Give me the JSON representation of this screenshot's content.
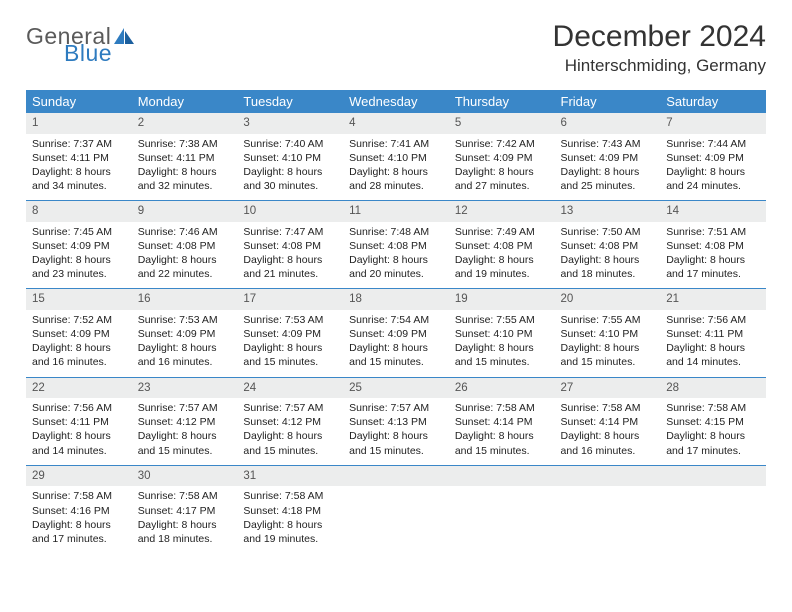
{
  "brand": {
    "general": "General",
    "blue": "Blue"
  },
  "title": "December 2024",
  "location": "Hinterschmiding, Germany",
  "colors": {
    "header_bg": "#3a87c8",
    "header_fg": "#ffffff",
    "daynum_bg": "#eceded",
    "row_divider": "#3a87c8",
    "logo_gray": "#5a5a5a",
    "logo_blue": "#2e7bbf"
  },
  "weekdays": [
    "Sunday",
    "Monday",
    "Tuesday",
    "Wednesday",
    "Thursday",
    "Friday",
    "Saturday"
  ],
  "weeks": [
    [
      {
        "n": "1",
        "sr": "Sunrise: 7:37 AM",
        "ss": "Sunset: 4:11 PM",
        "dl1": "Daylight: 8 hours",
        "dl2": "and 34 minutes."
      },
      {
        "n": "2",
        "sr": "Sunrise: 7:38 AM",
        "ss": "Sunset: 4:11 PM",
        "dl1": "Daylight: 8 hours",
        "dl2": "and 32 minutes."
      },
      {
        "n": "3",
        "sr": "Sunrise: 7:40 AM",
        "ss": "Sunset: 4:10 PM",
        "dl1": "Daylight: 8 hours",
        "dl2": "and 30 minutes."
      },
      {
        "n": "4",
        "sr": "Sunrise: 7:41 AM",
        "ss": "Sunset: 4:10 PM",
        "dl1": "Daylight: 8 hours",
        "dl2": "and 28 minutes."
      },
      {
        "n": "5",
        "sr": "Sunrise: 7:42 AM",
        "ss": "Sunset: 4:09 PM",
        "dl1": "Daylight: 8 hours",
        "dl2": "and 27 minutes."
      },
      {
        "n": "6",
        "sr": "Sunrise: 7:43 AM",
        "ss": "Sunset: 4:09 PM",
        "dl1": "Daylight: 8 hours",
        "dl2": "and 25 minutes."
      },
      {
        "n": "7",
        "sr": "Sunrise: 7:44 AM",
        "ss": "Sunset: 4:09 PM",
        "dl1": "Daylight: 8 hours",
        "dl2": "and 24 minutes."
      }
    ],
    [
      {
        "n": "8",
        "sr": "Sunrise: 7:45 AM",
        "ss": "Sunset: 4:09 PM",
        "dl1": "Daylight: 8 hours",
        "dl2": "and 23 minutes."
      },
      {
        "n": "9",
        "sr": "Sunrise: 7:46 AM",
        "ss": "Sunset: 4:08 PM",
        "dl1": "Daylight: 8 hours",
        "dl2": "and 22 minutes."
      },
      {
        "n": "10",
        "sr": "Sunrise: 7:47 AM",
        "ss": "Sunset: 4:08 PM",
        "dl1": "Daylight: 8 hours",
        "dl2": "and 21 minutes."
      },
      {
        "n": "11",
        "sr": "Sunrise: 7:48 AM",
        "ss": "Sunset: 4:08 PM",
        "dl1": "Daylight: 8 hours",
        "dl2": "and 20 minutes."
      },
      {
        "n": "12",
        "sr": "Sunrise: 7:49 AM",
        "ss": "Sunset: 4:08 PM",
        "dl1": "Daylight: 8 hours",
        "dl2": "and 19 minutes."
      },
      {
        "n": "13",
        "sr": "Sunrise: 7:50 AM",
        "ss": "Sunset: 4:08 PM",
        "dl1": "Daylight: 8 hours",
        "dl2": "and 18 minutes."
      },
      {
        "n": "14",
        "sr": "Sunrise: 7:51 AM",
        "ss": "Sunset: 4:08 PM",
        "dl1": "Daylight: 8 hours",
        "dl2": "and 17 minutes."
      }
    ],
    [
      {
        "n": "15",
        "sr": "Sunrise: 7:52 AM",
        "ss": "Sunset: 4:09 PM",
        "dl1": "Daylight: 8 hours",
        "dl2": "and 16 minutes."
      },
      {
        "n": "16",
        "sr": "Sunrise: 7:53 AM",
        "ss": "Sunset: 4:09 PM",
        "dl1": "Daylight: 8 hours",
        "dl2": "and 16 minutes."
      },
      {
        "n": "17",
        "sr": "Sunrise: 7:53 AM",
        "ss": "Sunset: 4:09 PM",
        "dl1": "Daylight: 8 hours",
        "dl2": "and 15 minutes."
      },
      {
        "n": "18",
        "sr": "Sunrise: 7:54 AM",
        "ss": "Sunset: 4:09 PM",
        "dl1": "Daylight: 8 hours",
        "dl2": "and 15 minutes."
      },
      {
        "n": "19",
        "sr": "Sunrise: 7:55 AM",
        "ss": "Sunset: 4:10 PM",
        "dl1": "Daylight: 8 hours",
        "dl2": "and 15 minutes."
      },
      {
        "n": "20",
        "sr": "Sunrise: 7:55 AM",
        "ss": "Sunset: 4:10 PM",
        "dl1": "Daylight: 8 hours",
        "dl2": "and 15 minutes."
      },
      {
        "n": "21",
        "sr": "Sunrise: 7:56 AM",
        "ss": "Sunset: 4:11 PM",
        "dl1": "Daylight: 8 hours",
        "dl2": "and 14 minutes."
      }
    ],
    [
      {
        "n": "22",
        "sr": "Sunrise: 7:56 AM",
        "ss": "Sunset: 4:11 PM",
        "dl1": "Daylight: 8 hours",
        "dl2": "and 14 minutes."
      },
      {
        "n": "23",
        "sr": "Sunrise: 7:57 AM",
        "ss": "Sunset: 4:12 PM",
        "dl1": "Daylight: 8 hours",
        "dl2": "and 15 minutes."
      },
      {
        "n": "24",
        "sr": "Sunrise: 7:57 AM",
        "ss": "Sunset: 4:12 PM",
        "dl1": "Daylight: 8 hours",
        "dl2": "and 15 minutes."
      },
      {
        "n": "25",
        "sr": "Sunrise: 7:57 AM",
        "ss": "Sunset: 4:13 PM",
        "dl1": "Daylight: 8 hours",
        "dl2": "and 15 minutes."
      },
      {
        "n": "26",
        "sr": "Sunrise: 7:58 AM",
        "ss": "Sunset: 4:14 PM",
        "dl1": "Daylight: 8 hours",
        "dl2": "and 15 minutes."
      },
      {
        "n": "27",
        "sr": "Sunrise: 7:58 AM",
        "ss": "Sunset: 4:14 PM",
        "dl1": "Daylight: 8 hours",
        "dl2": "and 16 minutes."
      },
      {
        "n": "28",
        "sr": "Sunrise: 7:58 AM",
        "ss": "Sunset: 4:15 PM",
        "dl1": "Daylight: 8 hours",
        "dl2": "and 17 minutes."
      }
    ],
    [
      {
        "n": "29",
        "sr": "Sunrise: 7:58 AM",
        "ss": "Sunset: 4:16 PM",
        "dl1": "Daylight: 8 hours",
        "dl2": "and 17 minutes."
      },
      {
        "n": "30",
        "sr": "Sunrise: 7:58 AM",
        "ss": "Sunset: 4:17 PM",
        "dl1": "Daylight: 8 hours",
        "dl2": "and 18 minutes."
      },
      {
        "n": "31",
        "sr": "Sunrise: 7:58 AM",
        "ss": "Sunset: 4:18 PM",
        "dl1": "Daylight: 8 hours",
        "dl2": "and 19 minutes."
      },
      null,
      null,
      null,
      null
    ]
  ]
}
